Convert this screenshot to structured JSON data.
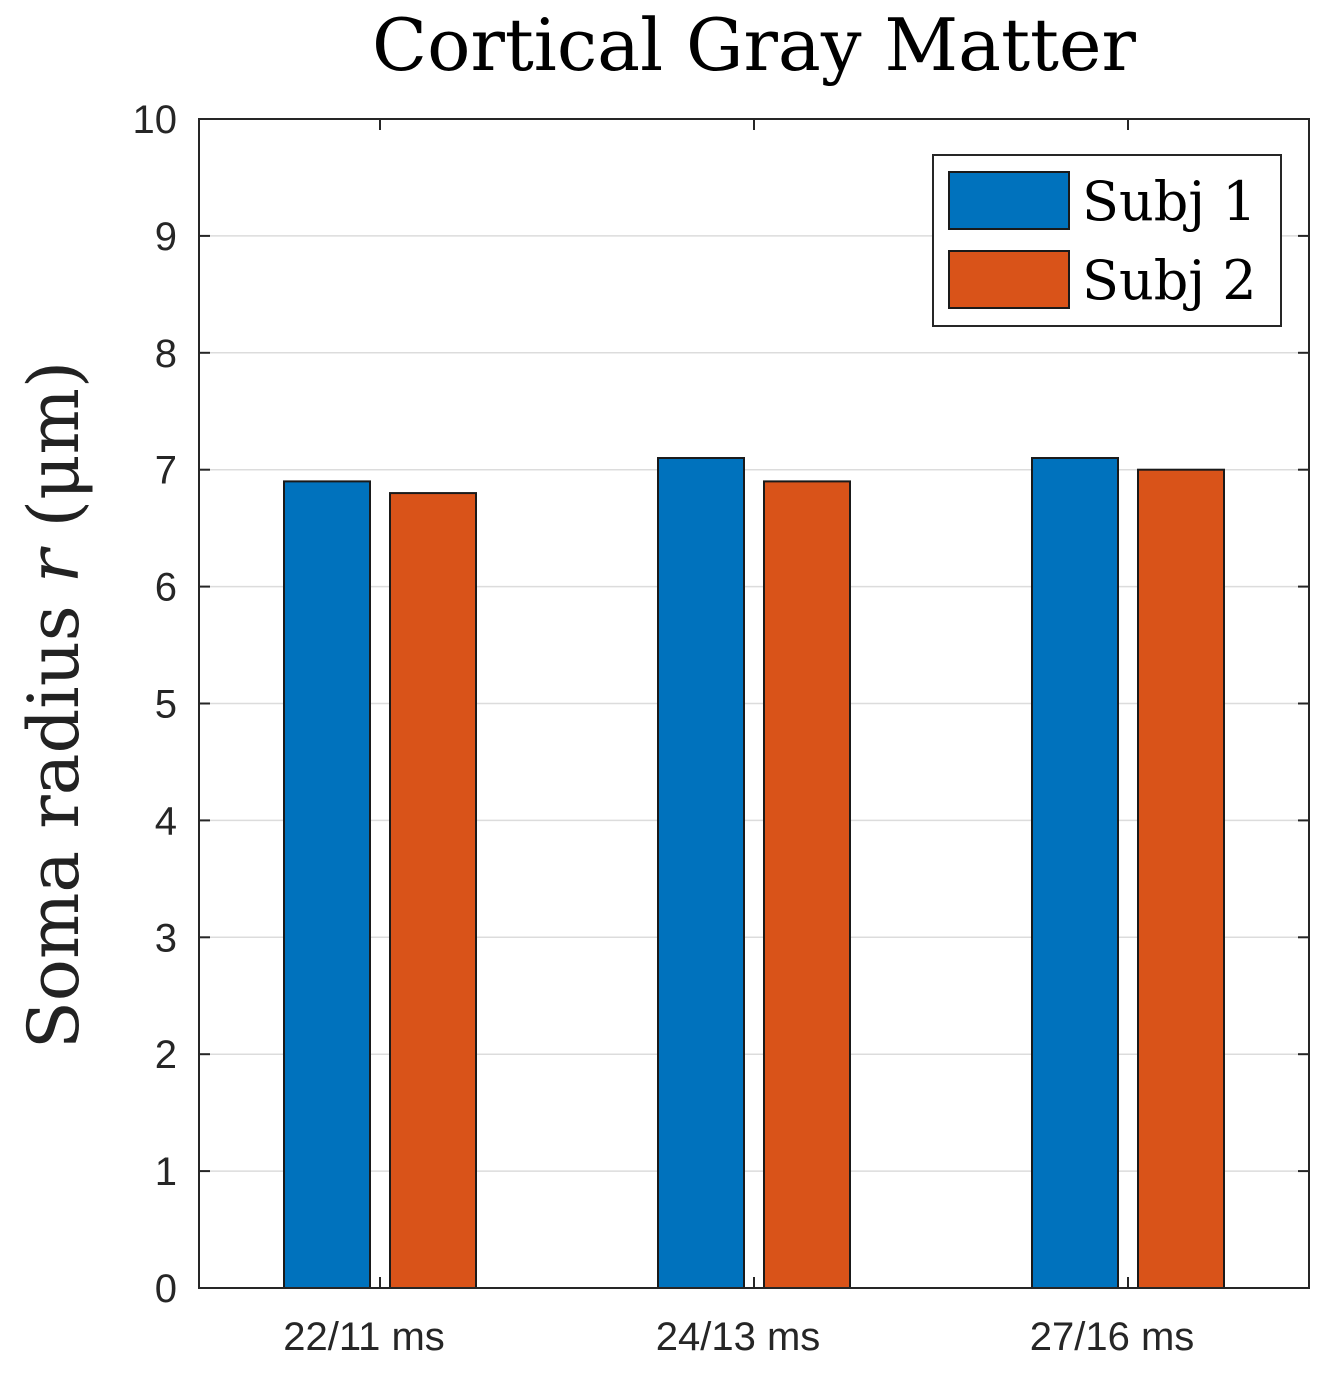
{
  "chart_data": {
    "type": "bar",
    "title": "Cortical Gray Matter",
    "xlabel": "",
    "ylabel": {
      "prefix": "Soma radius ",
      "variable": "r",
      "unit": " (μm)"
    },
    "categories": [
      "22/11 ms",
      "24/13 ms",
      "27/16 ms"
    ],
    "series": [
      {
        "name": "Subj 1",
        "color": "#0072BD",
        "values": [
          6.9,
          7.1,
          7.1
        ]
      },
      {
        "name": "Subj 2",
        "color": "#D95319",
        "values": [
          6.8,
          6.9,
          7.0
        ]
      }
    ],
    "ylim": [
      0,
      10
    ],
    "yticks": [
      "0",
      "1",
      "2",
      "3",
      "4",
      "5",
      "6",
      "7",
      "8",
      "9",
      "10"
    ],
    "grid": "y-major",
    "legend_position": "top-right"
  }
}
